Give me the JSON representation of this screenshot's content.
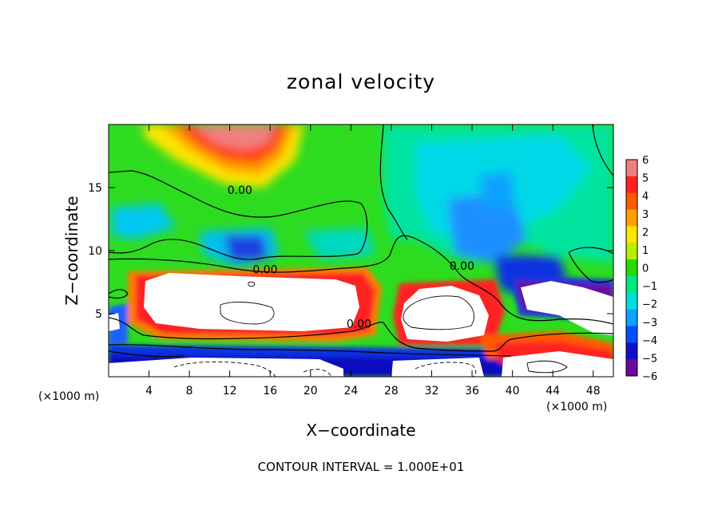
{
  "chart_data": {
    "type": "heatmap",
    "title": "zonal velocity",
    "xlabel": "X−coordinate",
    "ylabel": "Z−coordinate",
    "x_unit": "(×1000 m)",
    "y_unit": "(×1000 m)",
    "xlim": [
      0,
      50
    ],
    "ylim": [
      0,
      20
    ],
    "x_ticks": [
      4,
      8,
      12,
      16,
      20,
      24,
      28,
      32,
      36,
      40,
      44,
      48
    ],
    "y_ticks": [
      5,
      10,
      15
    ],
    "colorbar": {
      "levels": [
        6,
        5,
        4,
        3,
        2,
        1,
        0,
        -1,
        -2,
        -3,
        -4,
        -5,
        -6
      ],
      "labels": [
        "6",
        "5",
        "4",
        "3",
        "2",
        "1",
        "0",
        "−1",
        "−2",
        "−3",
        "−4",
        "−5",
        "−6"
      ],
      "colors": [
        "#f08080",
        "#ff2020",
        "#ff5a00",
        "#ffa000",
        "#ffe600",
        "#b6f000",
        "#22dd00",
        "#00e880",
        "#00e0e0",
        "#10a0ff",
        "#0050ff",
        "#1010cc",
        "#6a0aa0"
      ]
    },
    "contour_labels": [
      {
        "x": 13,
        "z": 14.8,
        "text": "0.00"
      },
      {
        "x": 15.5,
        "z": 8.5,
        "text": "0.00"
      },
      {
        "x": 35,
        "z": 8.8,
        "text": "0.00"
      },
      {
        "x": 24.8,
        "z": 4.2,
        "text": "0.00"
      }
    ],
    "note": "CONTOUR INTERVAL =  1.000E+01"
  }
}
